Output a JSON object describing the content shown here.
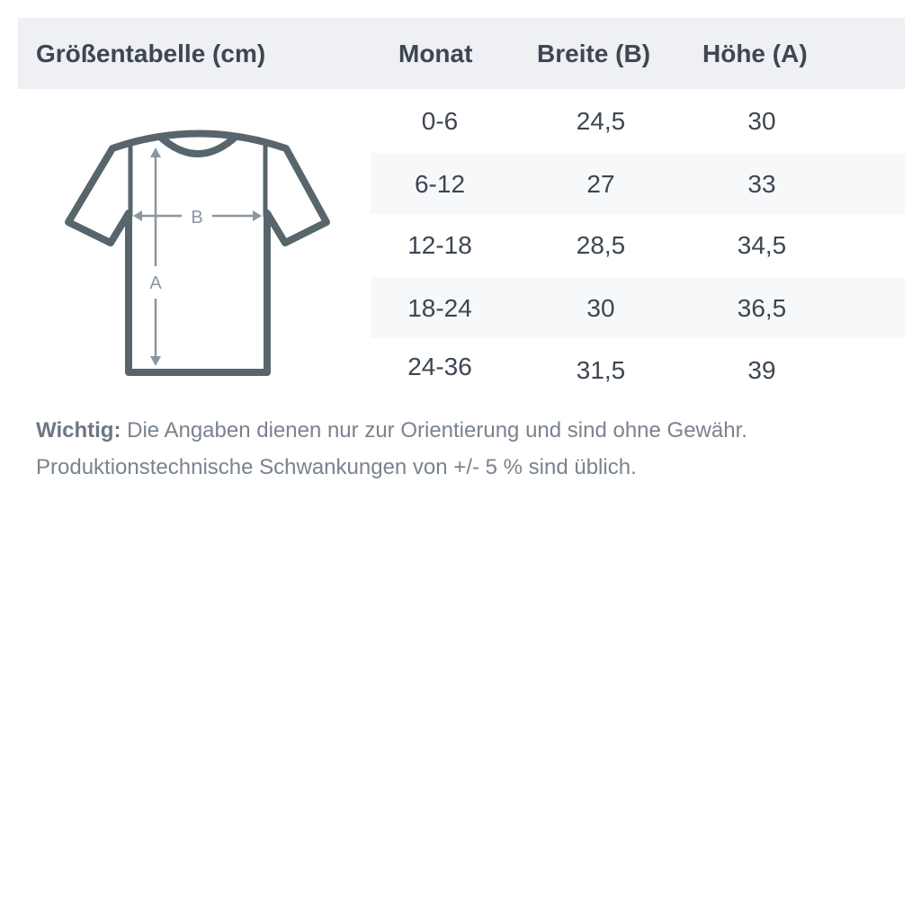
{
  "header": {
    "title": "Größentabelle (cm)",
    "col_month": "Monat",
    "col_width": "Breite (B)",
    "col_height": "Höhe (A)"
  },
  "rows": [
    {
      "month": "0-6",
      "width": "24,5",
      "height": "30"
    },
    {
      "month": "6-12",
      "width": "27",
      "height": "33"
    },
    {
      "month": "12-18",
      "width": "28,5",
      "height": "34,5"
    },
    {
      "month": "18-24",
      "width": "30",
      "height": "36,5"
    },
    {
      "month": "24-36",
      "width": "31,5",
      "height": "39"
    }
  ],
  "diagram": {
    "label_width": "B",
    "label_height": "A"
  },
  "note": {
    "label": "Wichtig:",
    "line1": " Die Angaben dienen nur zur Orientierung und sind ohne Gewähr.",
    "line2": "Produktionstechnische Schwankungen von +/- 5 % sind üblich."
  },
  "colors": {
    "outline": "#58656d",
    "arrows": "#8a96a0",
    "header_bg": "#eef0f3"
  }
}
